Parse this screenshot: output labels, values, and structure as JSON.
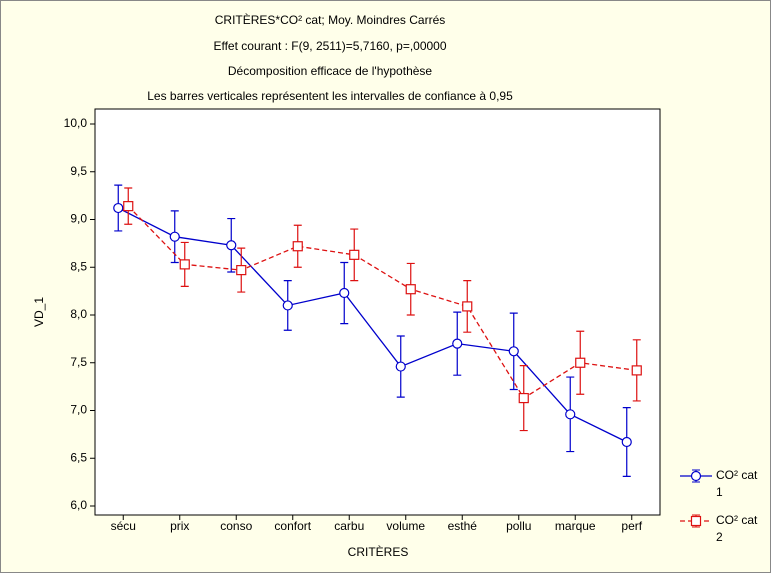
{
  "chart_data": {
    "type": "line",
    "title": "CRITÈRES*CO² cat; Moy. Moindres Carrés",
    "subtitle": "Effet courant : F(9, 2511)=5,7160, p=,00000",
    "subtitle2": "Décomposition efficace de l'hypothèse",
    "subtitle3": "Les barres verticales représentent les intervalles de confiance à 0,95",
    "x_label": "CRITÈRES",
    "y_label": "VD_1",
    "categories": [
      "sécu",
      "prix",
      "conso",
      "confort",
      "carbu",
      "volume",
      "esthé",
      "pollu",
      "marque",
      "perf"
    ],
    "series": [
      {
        "name": "CO² cat",
        "level": "1",
        "color": "#0000cc",
        "marker": "circle",
        "dashed": false,
        "values": [
          9.12,
          8.82,
          8.73,
          8.1,
          8.23,
          7.46,
          7.7,
          7.62,
          6.96,
          6.67
        ],
        "errors": [
          0.24,
          0.27,
          0.28,
          0.26,
          0.32,
          0.32,
          0.33,
          0.4,
          0.39,
          0.36
        ]
      },
      {
        "name": "CO² cat",
        "level": "2",
        "color": "#dd1111",
        "marker": "square",
        "dashed": true,
        "values": [
          9.14,
          8.53,
          8.47,
          8.72,
          8.63,
          8.27,
          8.09,
          7.13,
          7.5,
          7.42
        ],
        "errors": [
          0.19,
          0.23,
          0.23,
          0.22,
          0.27,
          0.27,
          0.27,
          0.34,
          0.33,
          0.32
        ]
      }
    ],
    "ylim": [
      6,
      10
    ],
    "yticks": [
      {
        "value": 6,
        "label": "6,0"
      },
      {
        "value": 6.5,
        "label": "6,5"
      },
      {
        "value": 7,
        "label": "7,0"
      },
      {
        "value": 7.5,
        "label": "7,5"
      },
      {
        "value": 8,
        "label": "8,0"
      },
      {
        "value": 8.5,
        "label": "8,5"
      },
      {
        "value": 9,
        "label": "9,0"
      },
      {
        "value": 9.5,
        "label": "9,5"
      },
      {
        "value": 10,
        "label": "10,0"
      }
    ]
  }
}
